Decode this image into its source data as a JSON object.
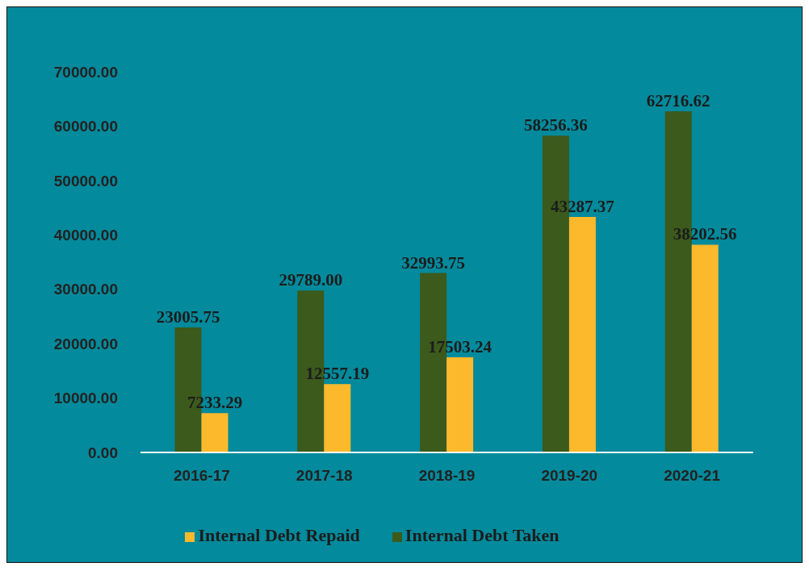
{
  "chart_data": {
    "type": "bar",
    "categories": [
      "2016-17",
      "2017-18",
      "2018-19",
      "2019-20",
      "2020-21"
    ],
    "series": [
      {
        "name": "Internal Debt Taken",
        "color": "#3b5a1c",
        "values": [
          23005.75,
          29789.0,
          32993.75,
          58256.36,
          62716.62
        ],
        "value_labels": [
          "23005.75",
          "29789.00",
          "32993.75",
          "58256.36",
          "62716.62"
        ]
      },
      {
        "name": "Internal Debt Repaid",
        "color": "#fdb92c",
        "values": [
          7233.29,
          12557.19,
          17503.24,
          43287.37,
          38202.56
        ],
        "value_labels": [
          "7233.29",
          "12557.19",
          "17503.24",
          "43287.37",
          "38202.56"
        ]
      }
    ],
    "ylim": [
      0,
      70000
    ],
    "yticks": [
      {
        "value": 0,
        "label": "0.00"
      },
      {
        "value": 10000,
        "label": "10000.00"
      },
      {
        "value": 20000,
        "label": "20000.00"
      },
      {
        "value": 30000,
        "label": "30000.00"
      },
      {
        "value": 40000,
        "label": "40000.00"
      },
      {
        "value": 50000,
        "label": "50000.00"
      },
      {
        "value": 60000,
        "label": "60000.00"
      },
      {
        "value": 70000,
        "label": "70000.00"
      }
    ],
    "grid": false,
    "legend": "bottom"
  }
}
